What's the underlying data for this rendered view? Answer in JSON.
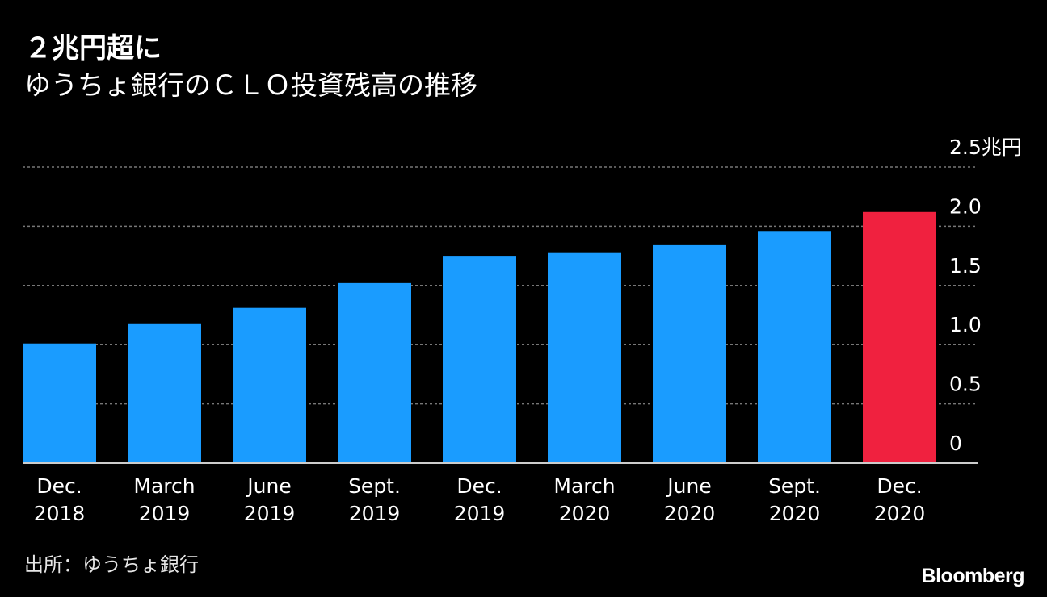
{
  "title": "２兆円超に",
  "subtitle": "ゆうちょ銀行のＣＬＯ投資残高の推移",
  "source": "出所：ゆうちょ銀行",
  "brand": "Bloomberg",
  "colors": {
    "background": "#000000",
    "bar": "#1a9cff",
    "highlight": "#f0213f",
    "gridline": "#777777",
    "text": "#ffffff"
  },
  "chart_data": {
    "type": "bar",
    "categories": [
      [
        "Dec.",
        "2018"
      ],
      [
        "March",
        "2019"
      ],
      [
        "June",
        "2019"
      ],
      [
        "Sept.",
        "2019"
      ],
      [
        "Dec.",
        "2019"
      ],
      [
        "March",
        "2020"
      ],
      [
        "June",
        "2020"
      ],
      [
        "Sept.",
        "2020"
      ],
      [
        "Dec.",
        "2020"
      ]
    ],
    "values": [
      1.01,
      1.18,
      1.31,
      1.52,
      1.75,
      1.78,
      1.84,
      1.96,
      2.12
    ],
    "highlight_index": 8,
    "ylim": [
      0,
      2.5
    ],
    "yticks": [
      0,
      0.5,
      1.0,
      1.5,
      2.0,
      2.5
    ],
    "ytick_labels": [
      "0",
      "0.5",
      "1.0",
      "1.5",
      "2.0",
      "2.5兆円"
    ],
    "grid": true,
    "axis_side": "right"
  }
}
